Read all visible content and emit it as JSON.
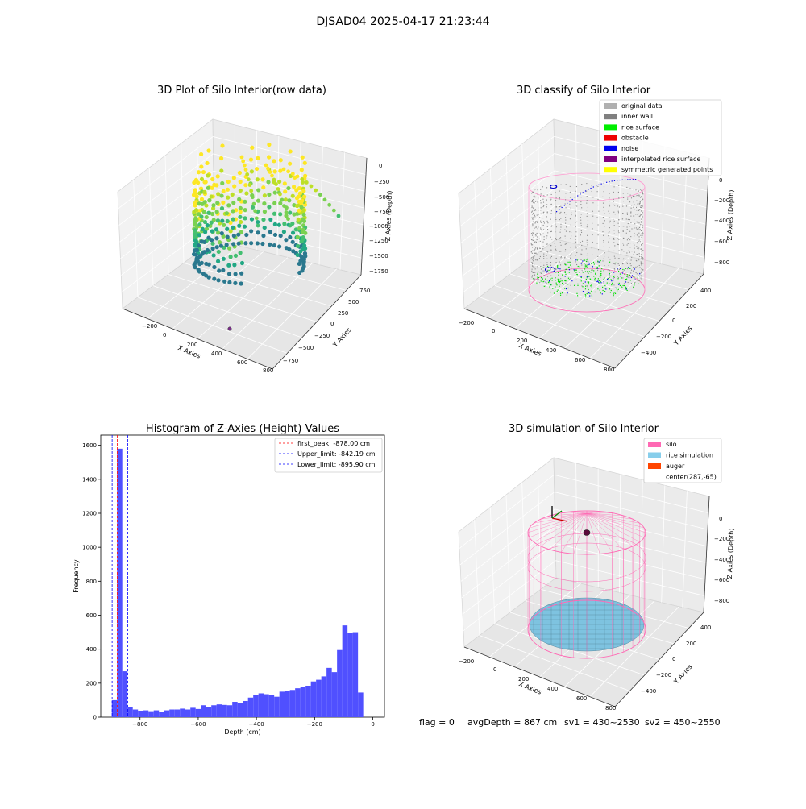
{
  "figure": {
    "title": "DJSAD04 2025-04-17 21:23:44"
  },
  "panels": {
    "raw": {
      "title": "3D Plot of Silo Interior(row data)",
      "xlabel": "X Axies",
      "ylabel": "Y Axies",
      "zlabel": "Z Axies (Depth)",
      "xticks": [
        "−200",
        "0",
        "200",
        "400",
        "600",
        "800"
      ],
      "yticks": [
        "−750",
        "−500",
        "−250",
        "0",
        "250",
        "500",
        "750"
      ],
      "zticks": [
        "0",
        "−250",
        "−500",
        "−750",
        "−1000",
        "−1250",
        "−1500",
        "−1750"
      ]
    },
    "classify": {
      "title": "3D classify of Silo Interior",
      "xlabel": "X Axies",
      "ylabel": "Y Axies",
      "zlabel": "Z Axies (Depth)",
      "xticks": [
        "−200",
        "0",
        "200",
        "400",
        "600",
        "800"
      ],
      "yticks": [
        "−400",
        "−200",
        "0",
        "200",
        "400"
      ],
      "zticks": [
        "0",
        "−200",
        "−400",
        "−600",
        "−800"
      ],
      "legend": [
        {
          "label": "original data",
          "color": "#b0b0b0"
        },
        {
          "label": "inner wall",
          "color": "#808080"
        },
        {
          "label": "rice surface",
          "color": "#00ee00"
        },
        {
          "label": "obstacle",
          "color": "#ee0000"
        },
        {
          "label": "noise",
          "color": "#0000ee"
        },
        {
          "label": "interpolated rice surface",
          "color": "#800080"
        },
        {
          "label": "symmetric generated points",
          "color": "#ffff00"
        }
      ]
    },
    "simulation": {
      "title": "3D simulation of Silo Interior",
      "xlabel": "X Axies",
      "ylabel": "Y Axies",
      "zlabel": "Z Axies (Depth)",
      "xticks": [
        "−200",
        "0",
        "200",
        "400",
        "600",
        "800"
      ],
      "yticks": [
        "−400",
        "−200",
        "0",
        "200",
        "400"
      ],
      "zticks": [
        "0",
        "−200",
        "−400",
        "−600",
        "−800"
      ],
      "legend": [
        {
          "label": "silo",
          "color": "#ff69b4"
        },
        {
          "label": "rice simulation",
          "color": "#87ceeb"
        },
        {
          "label": "auger",
          "color": "#ff4500"
        },
        {
          "label": "center(287,-65)",
          "color": ""
        }
      ]
    }
  },
  "status": {
    "flag": "flag = 0",
    "avg_depth": "avgDepth = 867 cm",
    "sv1": "sv1 = 430~2530",
    "sv2": "sv2 = 450~2550"
  },
  "chart_data": {
    "type": "bar",
    "title": "Histogram of Z-Axies (Height) Values",
    "xlabel": "Depth (cm)",
    "ylabel": "Frequency",
    "xlim": [
      -935,
      40
    ],
    "ylim": [
      0,
      1660
    ],
    "xticks": [
      -800,
      -600,
      -400,
      -200,
      0
    ],
    "xtick_labels": [
      "−800",
      "−600",
      "−400",
      "−200",
      "0"
    ],
    "yticks": [
      0,
      200,
      400,
      600,
      800,
      1000,
      1200,
      1400,
      1600
    ],
    "bin_start": -897,
    "bin_width": 18,
    "values": [
      100,
      1580,
      270,
      60,
      45,
      38,
      40,
      35,
      40,
      33,
      40,
      45,
      45,
      50,
      45,
      55,
      48,
      70,
      60,
      70,
      75,
      72,
      70,
      90,
      85,
      95,
      115,
      130,
      140,
      135,
      130,
      120,
      150,
      155,
      160,
      170,
      180,
      185,
      210,
      220,
      240,
      290,
      265,
      395,
      540,
      495,
      500,
      145
    ],
    "vlines": [
      {
        "label": "first_peak: -878.00 cm",
        "x": -878.0,
        "color": "#ff0000"
      },
      {
        "label": "Upper_limit: -842.19 cm",
        "x": -842.19,
        "color": "#0000ff"
      },
      {
        "label": "Lower_limit: -895.90 cm",
        "x": -895.9,
        "color": "#0000ff"
      }
    ],
    "bar_color": "#5050ff"
  }
}
